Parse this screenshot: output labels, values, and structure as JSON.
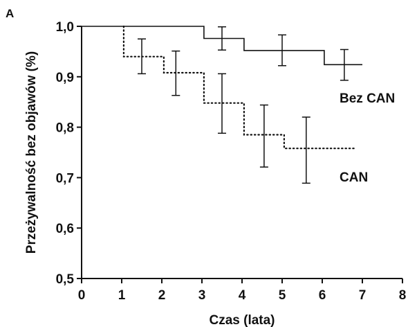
{
  "panel_label": "A",
  "chart_data": {
    "type": "line",
    "title": "",
    "xlabel": "Czas (lata)",
    "ylabel": "Przeżywalność bez objawów (%)",
    "xlim": [
      0,
      8
    ],
    "ylim": [
      0.5,
      1.0
    ],
    "x_ticks": [
      0,
      1,
      2,
      3,
      4,
      5,
      6,
      7,
      8
    ],
    "x_tick_labels": [
      "0",
      "1",
      "2",
      "3",
      "4",
      "5",
      "6",
      "7",
      "8"
    ],
    "y_ticks": [
      0.5,
      0.6,
      0.7,
      0.8,
      0.9,
      1.0
    ],
    "y_tick_labels": [
      "0,5",
      "0,6",
      "0,7",
      "0,8",
      "0,9",
      "1,0"
    ],
    "grid": false,
    "series": [
      {
        "name": "Bez CAN",
        "line_style": "solid",
        "step_points": [
          [
            0,
            1.0
          ],
          [
            3.05,
            1.0
          ],
          [
            3.05,
            0.976
          ],
          [
            4.05,
            0.976
          ],
          [
            4.05,
            0.952
          ],
          [
            6.05,
            0.952
          ],
          [
            6.05,
            0.924
          ],
          [
            7.0,
            0.924
          ]
        ],
        "error_bars": [
          {
            "x": 3.5,
            "y": 0.976,
            "low": 0.953,
            "high": 0.999
          },
          {
            "x": 5.0,
            "y": 0.952,
            "low": 0.922,
            "high": 0.983
          },
          {
            "x": 6.55,
            "y": 0.924,
            "low": 0.893,
            "high": 0.954
          }
        ]
      },
      {
        "name": "CAN",
        "line_style": "dotted",
        "step_points": [
          [
            1.05,
            1.0
          ],
          [
            1.05,
            0.94
          ],
          [
            2.05,
            0.94
          ],
          [
            2.05,
            0.908
          ],
          [
            3.05,
            0.908
          ],
          [
            3.05,
            0.848
          ],
          [
            4.05,
            0.848
          ],
          [
            4.05,
            0.785
          ],
          [
            5.05,
            0.785
          ],
          [
            5.05,
            0.758
          ],
          [
            6.85,
            0.758
          ]
        ],
        "error_bars": [
          {
            "x": 1.5,
            "y": 0.94,
            "low": 0.906,
            "high": 0.975
          },
          {
            "x": 2.35,
            "y": 0.908,
            "low": 0.863,
            "high": 0.951
          },
          {
            "x": 3.5,
            "y": 0.848,
            "low": 0.788,
            "high": 0.906
          },
          {
            "x": 4.55,
            "y": 0.785,
            "low": 0.721,
            "high": 0.844
          },
          {
            "x": 5.6,
            "y": 0.758,
            "low": 0.689,
            "high": 0.82
          }
        ]
      }
    ]
  }
}
